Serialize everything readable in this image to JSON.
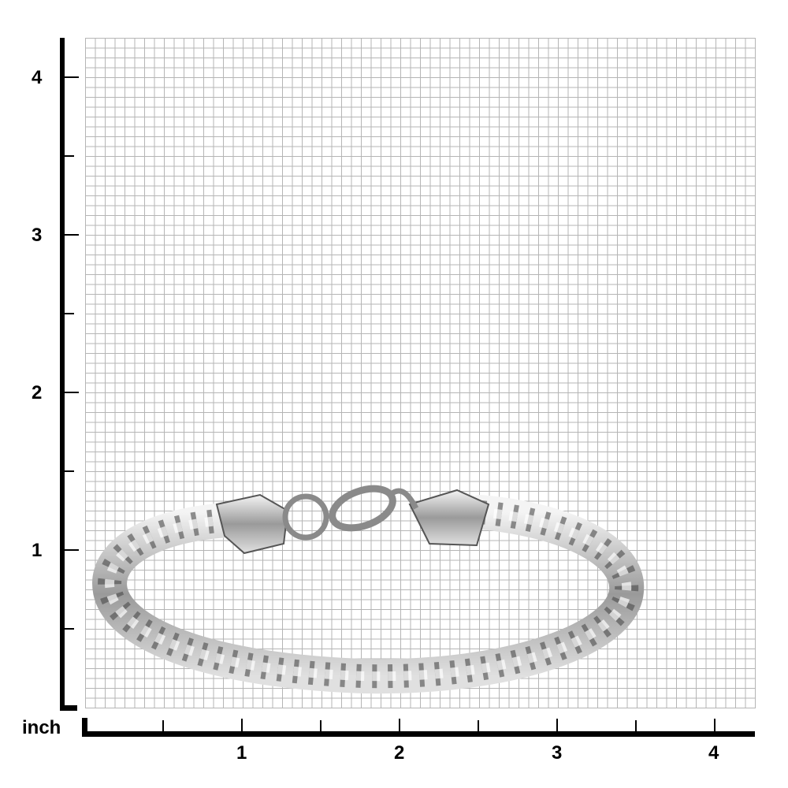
{
  "ruler": {
    "unit_label": "inch",
    "y_labels": [
      "1",
      "2",
      "3",
      "4"
    ],
    "x_labels": [
      "1",
      "2",
      "3",
      "4"
    ]
  },
  "image": {
    "subject": "stainless steel franco chain bracelet with lobster clasp",
    "metal_color": "#c8c8c8"
  }
}
